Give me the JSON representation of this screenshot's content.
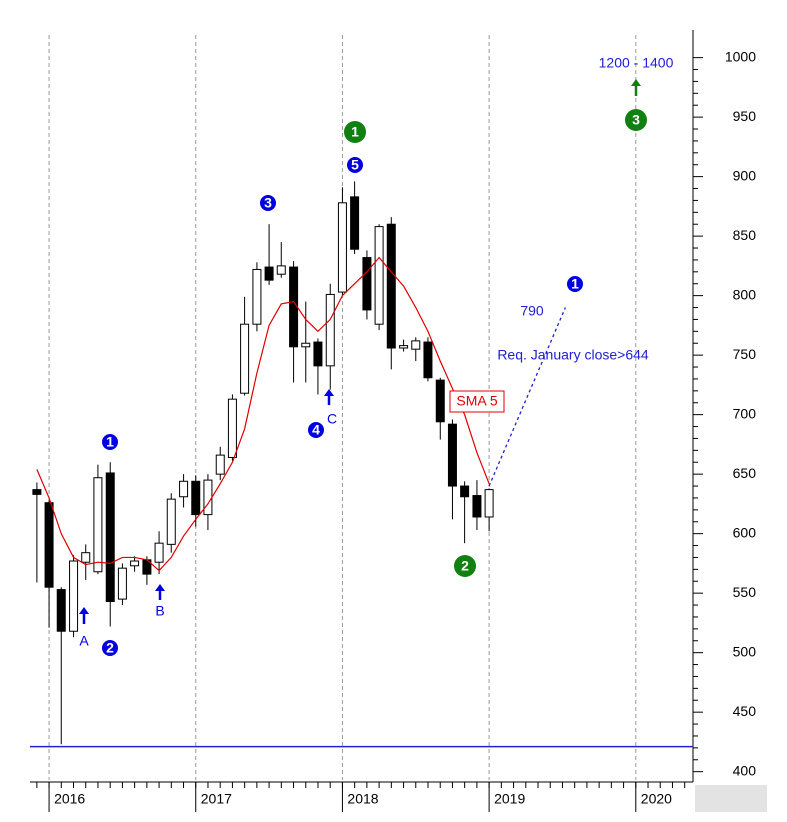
{
  "chart_data": {
    "type": "candlestick",
    "x": [
      2015.917,
      2016.0,
      2016.083,
      2016.167,
      2016.25,
      2016.333,
      2016.417,
      2016.5,
      2016.583,
      2016.667,
      2016.75,
      2016.833,
      2016.917,
      2017.0,
      2017.083,
      2017.167,
      2017.25,
      2017.333,
      2017.417,
      2017.5,
      2017.583,
      2017.667,
      2017.75,
      2017.833,
      2017.917,
      2018.0,
      2018.083,
      2018.167,
      2018.25,
      2018.333,
      2018.417,
      2018.5,
      2018.583,
      2018.667,
      2018.75,
      2018.833,
      2018.917,
      2019.0
    ],
    "open": [
      637,
      626,
      553,
      518,
      576,
      568,
      651,
      545,
      573,
      578,
      576,
      591,
      631,
      644,
      616,
      650,
      664,
      718,
      776,
      824,
      818,
      824,
      757,
      761,
      741,
      803,
      883,
      832,
      776,
      860,
      756,
      755,
      761,
      729,
      692,
      640,
      632,
      614
    ],
    "high": [
      643,
      628,
      555,
      582,
      591,
      658,
      660,
      575,
      581,
      581,
      602,
      634,
      650,
      649,
      650,
      673,
      717,
      799,
      828,
      860,
      845,
      829,
      795,
      764,
      810,
      891,
      896,
      838,
      860,
      866,
      763,
      765,
      765,
      731,
      696,
      644,
      645,
      638
    ],
    "low": [
      559,
      521,
      423,
      513,
      561,
      566,
      522,
      540,
      568,
      557,
      566,
      584,
      622,
      606,
      603,
      645,
      661,
      716,
      770,
      809,
      815,
      727,
      727,
      717,
      721,
      800,
      835,
      780,
      771,
      738,
      753,
      745,
      728,
      679,
      612,
      592,
      603,
      602
    ],
    "close": [
      633,
      555,
      518,
      577,
      584,
      647,
      543,
      571,
      577,
      566,
      592,
      629,
      644,
      616,
      645,
      666,
      713,
      776,
      822,
      813,
      825,
      757,
      760,
      741,
      801,
      878,
      839,
      788,
      858,
      756,
      758,
      762,
      731,
      694,
      640,
      631,
      614,
      637
    ],
    "up_color": "#ffffff",
    "down_color": "#000000",
    "sma": {
      "name": "SMA 5",
      "color": "#e00000",
      "values": [
        654,
        630,
        600,
        580,
        574,
        576,
        575,
        580,
        580,
        578,
        569,
        580,
        598,
        612,
        625,
        642,
        660,
        688,
        735,
        775,
        793,
        795,
        780,
        770,
        780,
        800,
        810,
        820,
        832,
        820,
        808,
        790,
        770,
        745,
        722,
        700,
        668,
        642
      ]
    },
    "projection": {
      "x": [
        2019.0,
        2019.52
      ],
      "values": [
        640,
        790
      ],
      "color": "#2020d0"
    },
    "support_line": {
      "value": 421,
      "color": "#2020d0"
    },
    "xlim": [
      2015.87,
      2020.39
    ],
    "xticks": [
      2016,
      2017,
      2018,
      2019,
      2020
    ],
    "ylim": [
      393,
      1019
    ],
    "yticks": [
      400,
      450,
      500,
      550,
      600,
      650,
      700,
      750,
      800,
      850,
      900,
      950,
      1000
    ],
    "grid": true,
    "wave_labels": [
      {
        "text": "1",
        "color": "#0000e0"
      },
      {
        "text": "2",
        "color": "#0000e0"
      },
      {
        "text": "3",
        "color": "#0000e0"
      },
      {
        "text": "4",
        "color": "#0000e0"
      },
      {
        "text": "5",
        "color": "#0000e0"
      },
      {
        "text": "1",
        "color": "#0000e0"
      },
      {
        "text": "1",
        "color": "#108010"
      },
      {
        "text": "2",
        "color": "#108010"
      },
      {
        "text": "3",
        "color": "#108010"
      }
    ],
    "notes": [
      {
        "text": "A",
        "color": "#0000e0"
      },
      {
        "text": "B",
        "color": "#0000e0"
      },
      {
        "text": "C",
        "color": "#0000e0"
      },
      {
        "text": "790",
        "color": "#2020d0"
      },
      {
        "text": "Req. January close>644",
        "color": "#2020d0"
      },
      {
        "text": "1200 - 1400",
        "color": "#2020d0"
      }
    ]
  }
}
